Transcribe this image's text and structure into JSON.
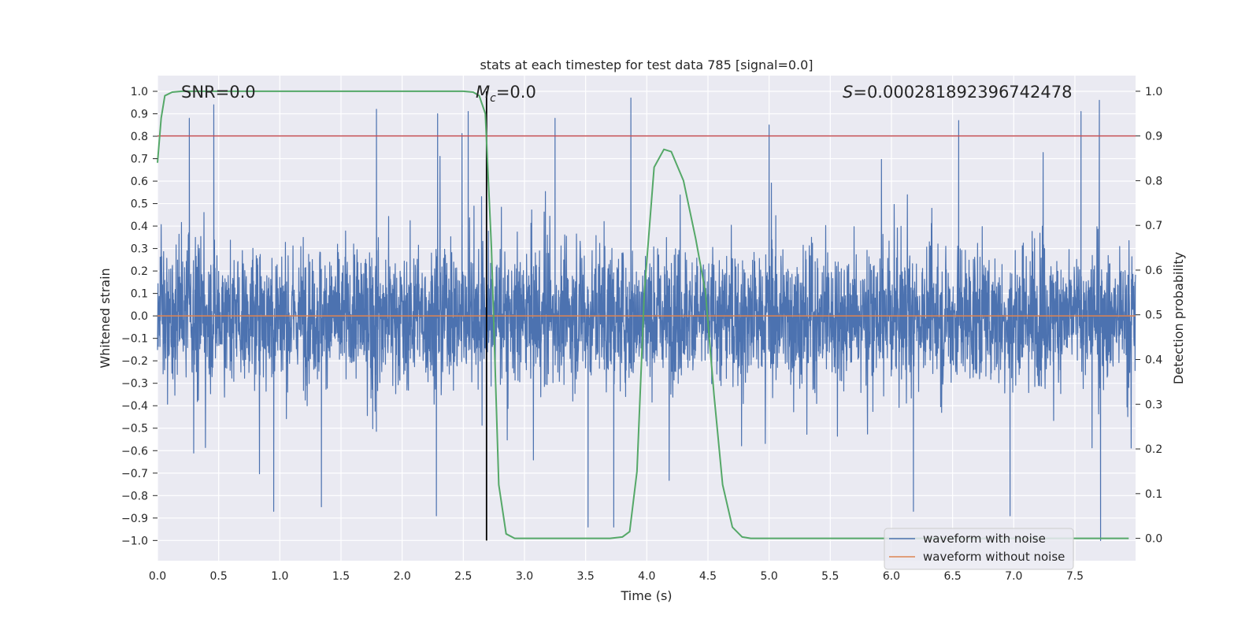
{
  "chart_data": {
    "type": "line",
    "title": "stats at each timestep for test data 785 [signal=0.0]",
    "xlabel": "Time (s)",
    "ylabel": "Whitened strain",
    "y2label": "Detection probability",
    "xlim": [
      0.0,
      7.996
    ],
    "ylim": [
      -1.09,
      1.07
    ],
    "y2lim": [
      -0.05,
      1.035
    ],
    "x_ticks": [
      "0.0",
      "0.5",
      "1.0",
      "1.5",
      "2.0",
      "2.5",
      "3.0",
      "3.5",
      "4.0",
      "4.5",
      "5.0",
      "5.5",
      "6.0",
      "6.5",
      "7.0",
      "7.5"
    ],
    "y_ticks": [
      "1.0",
      "0.9",
      "0.8",
      "0.7",
      "0.6",
      "0.5",
      "0.4",
      "0.3",
      "0.2",
      "0.1",
      "0.0",
      "−0.1",
      "−0.2",
      "−0.3",
      "−0.4",
      "−0.5",
      "−0.6",
      "−0.7",
      "−0.8",
      "−0.9",
      "−1.0"
    ],
    "y2_ticks": [
      "1.0",
      "0.9",
      "0.8",
      "0.7",
      "0.6",
      "0.5",
      "0.4",
      "0.3",
      "0.2",
      "0.1",
      "0.0"
    ],
    "grid": true,
    "legend_location": "lower-right",
    "annotations": {
      "snr_text": "SNR=0.0",
      "mc_symbol": "M",
      "mc_subscript": "c",
      "mc_value": "=0.0",
      "s_symbol": "S",
      "s_value": "=0.000281892396742478"
    },
    "threshold_line": {
      "name": "detection threshold",
      "y2": 0.9,
      "color": "#c44e52"
    },
    "marker_line": {
      "name": "predicted time",
      "x": 2.69,
      "y_from": -1.0,
      "y_to": 1.0,
      "color": "#000000"
    },
    "series": [
      {
        "name": "waveform with noise",
        "axis": "left",
        "color": "#4c72b0",
        "description": "whitened noise strain, dense fluctuation roughly between -1.0 and 1.0",
        "spikes_top": [
          {
            "x": 0.26,
            "y": 0.88
          },
          {
            "x": 0.46,
            "y": 0.94
          },
          {
            "x": 1.79,
            "y": 0.92
          },
          {
            "x": 2.29,
            "y": 0.9
          },
          {
            "x": 2.54,
            "y": 0.91
          },
          {
            "x": 3.25,
            "y": 0.88
          },
          {
            "x": 3.87,
            "y": 0.97
          },
          {
            "x": 5.0,
            "y": 0.85
          },
          {
            "x": 6.55,
            "y": 0.87
          },
          {
            "x": 7.55,
            "y": 0.91
          },
          {
            "x": 7.7,
            "y": 0.96
          }
        ],
        "spikes_bottom": [
          {
            "x": 0.95,
            "y": -0.87
          },
          {
            "x": 1.34,
            "y": -0.85
          },
          {
            "x": 2.28,
            "y": -0.89
          },
          {
            "x": 3.52,
            "y": -0.94
          },
          {
            "x": 3.73,
            "y": -0.94
          },
          {
            "x": 6.18,
            "y": -0.87
          },
          {
            "x": 6.97,
            "y": -0.89
          },
          {
            "x": 7.71,
            "y": -1.0
          }
        ]
      },
      {
        "name": "waveform without noise",
        "axis": "left",
        "color": "#dd8452",
        "x": [
          0.0,
          7.996
        ],
        "y": [
          0.0,
          0.0
        ]
      },
      {
        "name": "detection probability",
        "axis": "right",
        "color": "#55a868",
        "x": [
          0.0,
          0.03,
          0.06,
          0.12,
          0.2,
          0.5,
          1.0,
          1.5,
          2.0,
          2.5,
          2.58,
          2.63,
          2.68,
          2.73,
          2.79,
          2.85,
          2.92,
          3.0,
          3.4,
          3.7,
          3.8,
          3.86,
          3.92,
          3.98,
          4.06,
          4.14,
          4.2,
          4.3,
          4.4,
          4.48,
          4.55,
          4.62,
          4.7,
          4.78,
          4.85,
          5.0,
          6.0,
          7.0,
          7.94
        ],
        "y": [
          0.84,
          0.94,
          0.99,
          0.998,
          1.0,
          1.0,
          1.0,
          1.0,
          1.0,
          1.0,
          0.998,
          0.99,
          0.95,
          0.65,
          0.12,
          0.01,
          0.0,
          0.0,
          0.0,
          0.0,
          0.003,
          0.015,
          0.15,
          0.55,
          0.83,
          0.87,
          0.865,
          0.8,
          0.67,
          0.55,
          0.32,
          0.12,
          0.025,
          0.003,
          0.0,
          0.0,
          0.0,
          0.0,
          0.0
        ]
      }
    ]
  }
}
